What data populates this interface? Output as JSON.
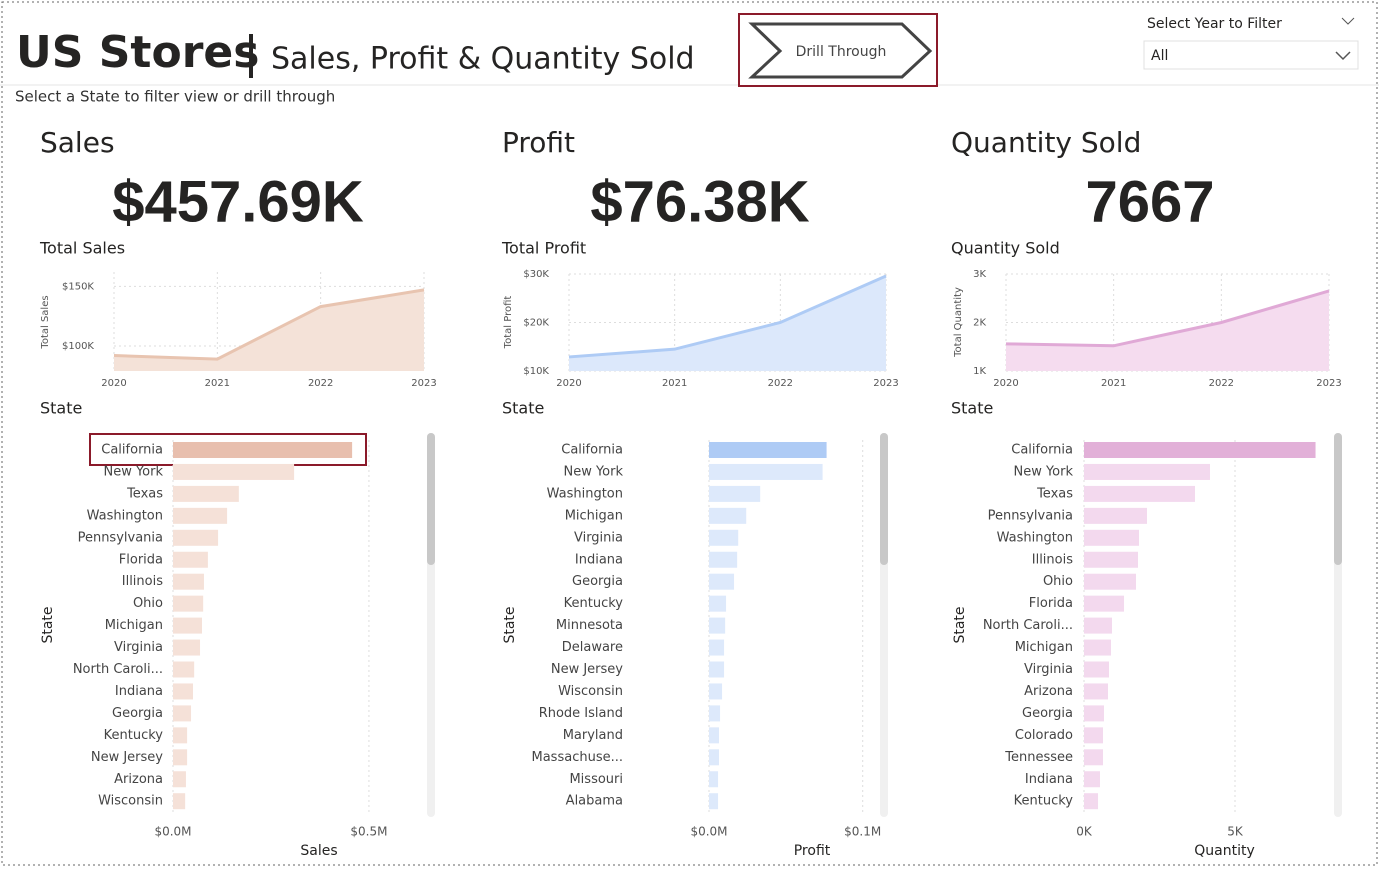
{
  "header": {
    "title": "US Stores",
    "subtitle": "Sales, Profit & Quantity Sold",
    "instruction": "Select a State to filter view or drill through",
    "button": "Drill Through",
    "filter_label": "Select Year to Filter",
    "filter_value": "All"
  },
  "panels": [
    {
      "title": "Sales",
      "kpi": "$457.69K",
      "state_label": "State"
    },
    {
      "title": "Profit",
      "kpi": "$76.38K",
      "state_label": "State"
    },
    {
      "title": "Quantity Sold",
      "kpi": "7667",
      "state_label": "State"
    }
  ],
  "chart_data": [
    {
      "type": "area",
      "title": "Total Sales",
      "ylabel": "Total Sales",
      "categories": [
        "2020",
        "2021",
        "2022",
        "2023"
      ],
      "values": [
        92000,
        89000,
        133000,
        147000
      ],
      "color": "#e8c4b0",
      "fill": "#f4e2d8",
      "ylim": [
        79000,
        162000
      ],
      "yticks": [
        {
          "value": 100000,
          "label": "$100K"
        },
        {
          "value": 150000,
          "label": "$150K"
        }
      ],
      "grid": true
    },
    {
      "type": "area",
      "title": "Total Profit",
      "ylabel": "Total Profit",
      "categories": [
        "2020",
        "2021",
        "2022",
        "2023"
      ],
      "values": [
        12900,
        14500,
        20000,
        29600
      ],
      "color": "#aecbf5",
      "fill": "#dce8fb",
      "ylim": [
        10000,
        30000
      ],
      "yticks": [
        {
          "value": 10000,
          "label": "$10K"
        },
        {
          "value": 20000,
          "label": "$20K"
        },
        {
          "value": 30000,
          "label": "$30K"
        }
      ],
      "grid": true
    },
    {
      "type": "area",
      "title": "Quantity Sold",
      "ylabel": "Total Quantity",
      "categories": [
        "2020",
        "2021",
        "2022",
        "2023"
      ],
      "values": [
        1560,
        1520,
        2000,
        2650
      ],
      "color": "#e0a9d6",
      "fill": "#f5dcef",
      "ylim": [
        1000,
        3000
      ],
      "yticks": [
        {
          "value": 1000,
          "label": "1K"
        },
        {
          "value": 2000,
          "label": "2K"
        },
        {
          "value": 3000,
          "label": "3K"
        }
      ],
      "grid": true
    },
    {
      "type": "bar",
      "orientation": "horizontal",
      "xlabel": "Sales",
      "ylabel": "State",
      "categories": [
        "California",
        "New York",
        "Texas",
        "Washington",
        "Pennsylvania",
        "Florida",
        "Illinois",
        "Ohio",
        "Michigan",
        "Virginia",
        "North Caroli...",
        "Indiana",
        "Georgia",
        "Kentucky",
        "New Jersey",
        "Arizona",
        "Wisconsin"
      ],
      "values": [
        457000,
        309000,
        168000,
        138000,
        115000,
        89000,
        79000,
        77000,
        74000,
        69000,
        54000,
        51000,
        46000,
        36000,
        36000,
        33000,
        31000
      ],
      "colors": [
        "#e8bfae",
        "#f5e1d8",
        "#f5e1d8",
        "#f5e1d8",
        "#f5e1d8",
        "#f5e1d8",
        "#f5e1d8",
        "#f5e1d8",
        "#f5e1d8",
        "#f5e1d8",
        "#f5e1d8",
        "#f5e1d8",
        "#f5e1d8",
        "#f5e1d8",
        "#f5e1d8",
        "#f5e1d8",
        "#f5e1d8"
      ],
      "xlim": [
        0,
        643000
      ],
      "xticks": [
        {
          "value": 0,
          "label": "$0.0M"
        },
        {
          "value": 500000,
          "label": "$0.5M"
        }
      ],
      "grid": true
    },
    {
      "type": "bar",
      "orientation": "horizontal",
      "xlabel": "Profit",
      "ylabel": "State",
      "categories": [
        "California",
        "New York",
        "Washington",
        "Michigan",
        "Virginia",
        "Indiana",
        "Georgia",
        "Kentucky",
        "Minnesota",
        "Delaware",
        "New Jersey",
        "Wisconsin",
        "Rhode Island",
        "Maryland",
        "Massachuse...",
        "Missouri",
        "Alabama"
      ],
      "values": [
        76500,
        73900,
        33300,
        24200,
        19000,
        18300,
        16300,
        11100,
        10500,
        9800,
        9800,
        8500,
        7200,
        6500,
        6500,
        5900,
        5900
      ],
      "colors": [
        "#aecbf5",
        "#dde9fb",
        "#dde9fb",
        "#dde9fb",
        "#dde9fb",
        "#dde9fb",
        "#dde9fb",
        "#dde9fb",
        "#dde9fb",
        "#dde9fb",
        "#dde9fb",
        "#dde9fb",
        "#dde9fb",
        "#dde9fb",
        "#dde9fb",
        "#dde9fb",
        "#dde9fb"
      ],
      "xlim": [
        0,
        108000
      ],
      "xticks": [
        {
          "value": 0,
          "label": "$0.0M"
        },
        {
          "value": 100000,
          "label": "$0.1M"
        }
      ],
      "grid": true
    },
    {
      "type": "bar",
      "orientation": "horizontal",
      "xlabel": "Quantity",
      "ylabel": "State",
      "categories": [
        "California",
        "New York",
        "Texas",
        "Pennsylvania",
        "Washington",
        "Illinois",
        "Ohio",
        "Florida",
        "North Caroli...",
        "Michigan",
        "Virginia",
        "Arizona",
        "Georgia",
        "Colorado",
        "Tennessee",
        "Indiana",
        "Kentucky"
      ],
      "values": [
        7667,
        4172,
        3675,
        2086,
        1821,
        1788,
        1722,
        1325,
        927,
        894,
        828,
        795,
        662,
        629,
        629,
        530,
        464
      ],
      "colors": [
        "#e2b0d8",
        "#f3d9ee",
        "#f3d9ee",
        "#f3d9ee",
        "#f3d9ee",
        "#f3d9ee",
        "#f3d9ee",
        "#f3d9ee",
        "#f3d9ee",
        "#f3d9ee",
        "#f3d9ee",
        "#f3d9ee",
        "#f3d9ee",
        "#f3d9ee",
        "#f3d9ee",
        "#f3d9ee",
        "#f3d9ee"
      ],
      "xlim": [
        0,
        7980
      ],
      "xticks": [
        {
          "value": 0,
          "label": "0K"
        },
        {
          "value": 5000,
          "label": "5K"
        }
      ],
      "grid": true
    }
  ]
}
